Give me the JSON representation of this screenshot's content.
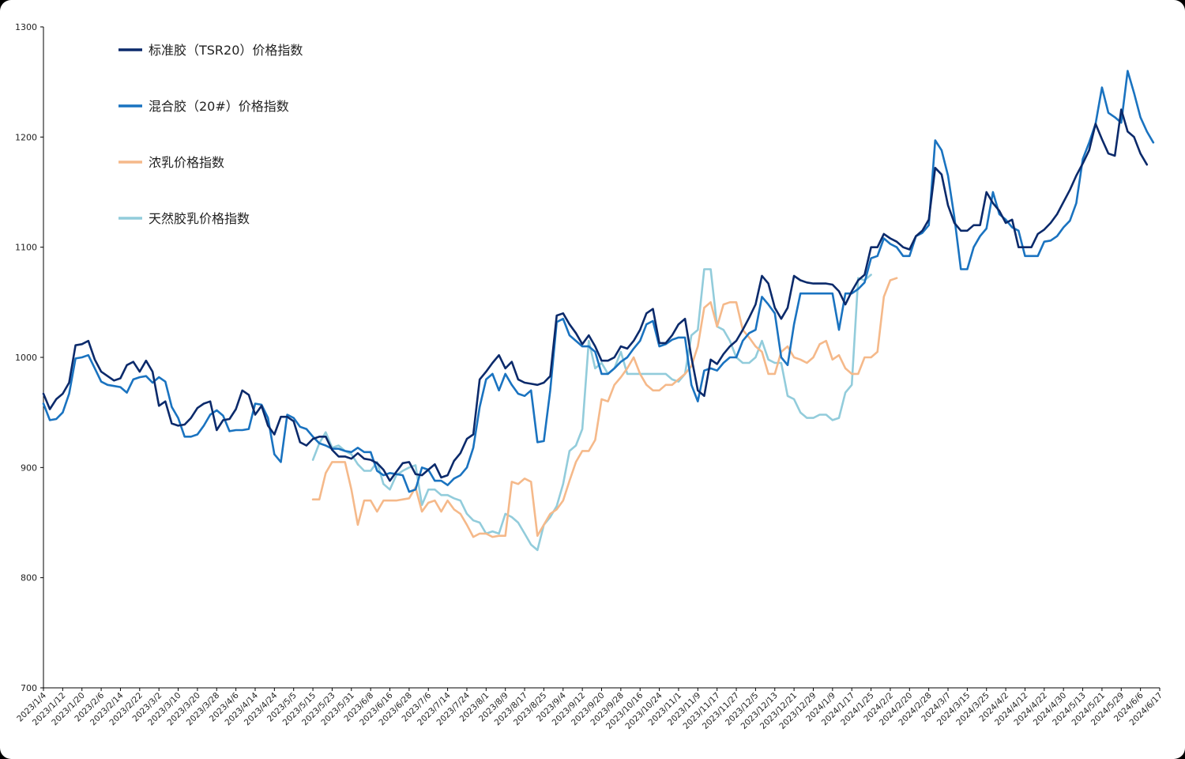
{
  "chart_data": {
    "type": "line",
    "title": "",
    "xlabel": "",
    "ylabel": "",
    "ylim": [
      700,
      1300
    ],
    "yticks": [
      700,
      800,
      900,
      1000,
      1100,
      1200,
      1300
    ],
    "grid": false,
    "legend_position": "top-left",
    "x_start": "2023/1/4",
    "x_end": "2024/6/17",
    "x_tick_labels": [
      "2023/1/4",
      "2023/1/12",
      "2023/1/20",
      "2023/2/6",
      "2023/2/14",
      "2023/2/22",
      "2023/3/2",
      "2023/3/10",
      "2023/3/20",
      "2023/3/28",
      "2023/4/6",
      "2023/4/14",
      "2023/4/24",
      "2023/5/5",
      "2023/5/15",
      "2023/5/23",
      "2023/5/31",
      "2023/6/8",
      "2023/6/16",
      "2023/6/28",
      "2023/7/6",
      "2023/7/14",
      "2023/7/24",
      "2023/8/1",
      "2023/8/9",
      "2023/8/17",
      "2023/8/25",
      "2023/9/4",
      "2023/9/12",
      "2023/9/20",
      "2023/9/28",
      "2023/10/16",
      "2023/10/24",
      "2023/11/1",
      "2023/11/9",
      "2023/11/17",
      "2023/11/27",
      "2023/12/5",
      "2023/12/13",
      "2023/12/21",
      "2023/12/29",
      "2024/1/9",
      "2024/1/17",
      "2024/1/25",
      "2024/2/2",
      "2024/2/20",
      "2024/2/28",
      "2024/3/7",
      "2024/3/15",
      "2024/3/25",
      "2024/4/2",
      "2024/4/12",
      "2024/4/22",
      "2024/4/30",
      "2024/5/13",
      "2024/5/21",
      "2024/5/29",
      "2024/6/6",
      "2024/6/17"
    ],
    "series": [
      {
        "name": "标准胶（TSR20）价格指数",
        "color": "#0b2a6b",
        "start_tick": 0,
        "values": [
          967,
          953,
          962,
          967,
          977,
          1011,
          1012,
          1015,
          998,
          987,
          983,
          979,
          981,
          993,
          996,
          987,
          997,
          987,
          956,
          960,
          940,
          938,
          939,
          945,
          954,
          958,
          960,
          934,
          943,
          944,
          953,
          970,
          966,
          948,
          956,
          938,
          930,
          946,
          946,
          942,
          923,
          920,
          926,
          928,
          928,
          916,
          910,
          910,
          908,
          913,
          908,
          907,
          904,
          898,
          888,
          896,
          904,
          905,
          894,
          893,
          898,
          903,
          891,
          893,
          906,
          913,
          926,
          930,
          980,
          987,
          995,
          1002,
          990,
          996,
          980,
          977,
          976,
          975,
          977,
          983,
          1038,
          1040,
          1030,
          1022,
          1012,
          1020,
          1010,
          997,
          997,
          1000,
          1010,
          1008,
          1015,
          1025,
          1040,
          1044,
          1013,
          1013,
          1020,
          1030,
          1035,
          1000,
          970,
          965,
          998,
          994,
          1003,
          1010,
          1015,
          1025,
          1036,
          1048,
          1074,
          1067,
          1045,
          1035,
          1045,
          1074,
          1070,
          1068,
          1067,
          1067,
          1067,
          1066,
          1060,
          1048,
          1060,
          1070,
          1075,
          1100,
          1100,
          1112,
          1108,
          1105,
          1100,
          1098,
          1110,
          1115,
          1125,
          1172,
          1166,
          1138,
          1122,
          1115,
          1115,
          1120,
          1120,
          1150,
          1140,
          1133,
          1122,
          1125,
          1100,
          1100,
          1100,
          1112,
          1116,
          1122,
          1130,
          1141,
          1152,
          1165,
          1176,
          1188,
          1212,
          1198,
          1185,
          1183,
          1225,
          1205,
          1200,
          1185,
          1175
        ]
      },
      {
        "name": "混合胶（20#）价格指数",
        "color": "#1a73c0",
        "start_tick": 0,
        "values": [
          958,
          943,
          944,
          950,
          967,
          999,
          1000,
          1002,
          990,
          978,
          975,
          974,
          973,
          968,
          980,
          982,
          983,
          977,
          982,
          978,
          955,
          945,
          928,
          928,
          930,
          938,
          948,
          952,
          947,
          933,
          934,
          934,
          935,
          958,
          957,
          945,
          912,
          905,
          948,
          945,
          937,
          935,
          928,
          922,
          920,
          917,
          917,
          915,
          914,
          918,
          914,
          914,
          897,
          893,
          895,
          894,
          893,
          878,
          880,
          900,
          898,
          888,
          888,
          884,
          890,
          893,
          900,
          918,
          955,
          980,
          985,
          970,
          985,
          975,
          967,
          965,
          970,
          923,
          924,
          970,
          1032,
          1035,
          1020,
          1015,
          1010,
          1010,
          1005,
          985,
          985,
          990,
          996,
          1000,
          1008,
          1015,
          1030,
          1033,
          1010,
          1012,
          1016,
          1018,
          1018,
          975,
          960,
          988,
          990,
          988,
          995,
          1000,
          1000,
          1015,
          1022,
          1025,
          1055,
          1048,
          1040,
          1000,
          993,
          1030,
          1058,
          1058,
          1058,
          1058,
          1058,
          1058,
          1025,
          1058,
          1058,
          1062,
          1068,
          1090,
          1092,
          1108,
          1103,
          1100,
          1092,
          1092,
          1110,
          1113,
          1120,
          1197,
          1188,
          1165,
          1127,
          1080,
          1080,
          1100,
          1110,
          1117,
          1150,
          1130,
          1125,
          1118,
          1115,
          1092,
          1092,
          1092,
          1105,
          1106,
          1110,
          1118,
          1124,
          1140,
          1180,
          1195,
          1212,
          1245,
          1222,
          1218,
          1213,
          1260,
          1240,
          1218,
          1205,
          1195
        ]
      },
      {
        "name": "浓乳价格指数",
        "color": "#f5b98a",
        "start_tick": 14,
        "values": [
          871,
          871,
          895,
          905,
          905,
          905,
          880,
          848,
          870,
          870,
          860,
          870,
          870,
          870,
          871,
          872,
          882,
          860,
          868,
          870,
          860,
          870,
          862,
          858,
          848,
          837,
          840,
          840,
          837,
          838,
          838,
          887,
          885,
          890,
          887,
          838,
          848,
          858,
          862,
          870,
          888,
          905,
          915,
          915,
          925,
          962,
          960,
          975,
          982,
          990,
          1000,
          985,
          975,
          970,
          970,
          975,
          975,
          980,
          985,
          992,
          1010,
          1045,
          1050,
          1028,
          1048,
          1050,
          1050,
          1025,
          1018,
          1010,
          1005,
          985,
          985,
          1005,
          1010,
          1000,
          998,
          995,
          1000,
          1012,
          1015,
          998,
          1002,
          990,
          985,
          985,
          1000,
          1000,
          1005,
          1055,
          1070,
          1072
        ]
      },
      {
        "name": "天然胶乳价格指数",
        "color": "#92ccdb",
        "start_tick": 14,
        "values": [
          907,
          922,
          932,
          918,
          920,
          915,
          912,
          903,
          897,
          897,
          905,
          885,
          880,
          893,
          897,
          900,
          902,
          866,
          880,
          880,
          875,
          875,
          872,
          870,
          858,
          852,
          850,
          840,
          842,
          840,
          858,
          855,
          850,
          840,
          830,
          825,
          848,
          855,
          865,
          885,
          915,
          920,
          935,
          1015,
          990,
          995,
          985,
          990,
          1005,
          985,
          985,
          985,
          985,
          985,
          985,
          985,
          980,
          978,
          985,
          1020,
          1025,
          1080,
          1080,
          1028,
          1025,
          1015,
          1000,
          995,
          995,
          1000,
          1015,
          998,
          995,
          995,
          965,
          962,
          950,
          945,
          945,
          948,
          948,
          943,
          945,
          968,
          975,
          1072,
          1070,
          1075
        ]
      }
    ]
  }
}
